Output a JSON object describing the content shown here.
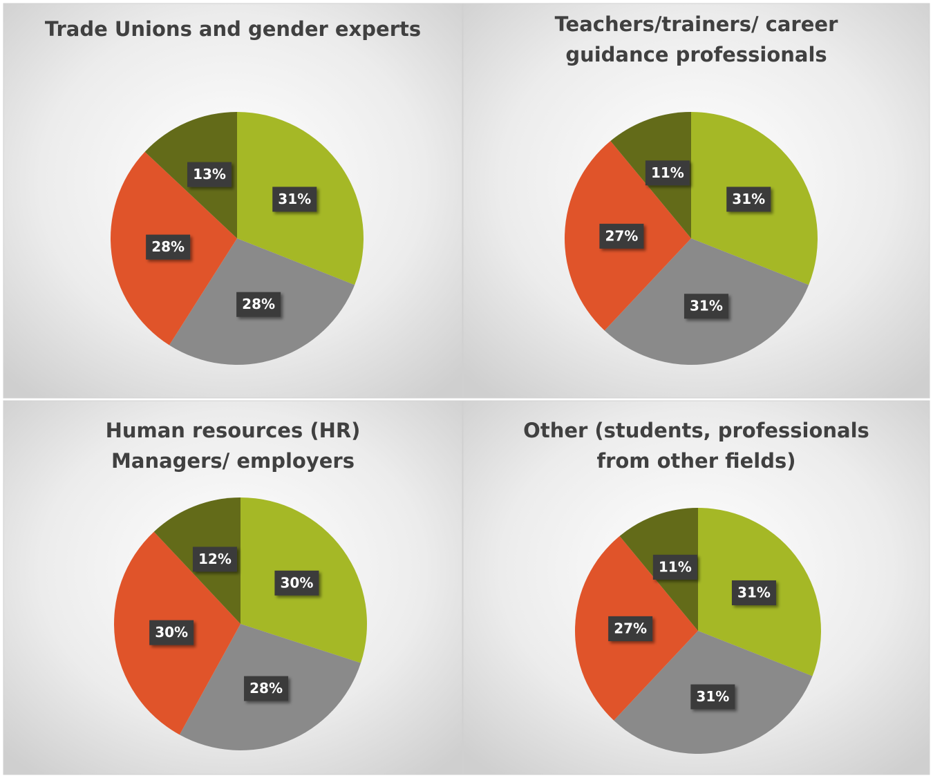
{
  "chart_data": [
    {
      "type": "pie",
      "title": [
        "Trade Unions and gender experts"
      ],
      "values": [
        31,
        28,
        28,
        13
      ],
      "value_labels": [
        "31%",
        "28%",
        "28%",
        "13%"
      ],
      "colors": [
        "#a5b826",
        "#8a8a8a",
        "#e0542a",
        "#636b19"
      ]
    },
    {
      "type": "pie",
      "title": [
        "Teachers/trainers/ career",
        "guidance professionals"
      ],
      "values": [
        31,
        31,
        27,
        11
      ],
      "value_labels": [
        "31%",
        "31%",
        "27%",
        "11%"
      ],
      "colors": [
        "#a5b826",
        "#8a8a8a",
        "#e0542a",
        "#636b19"
      ]
    },
    {
      "type": "pie",
      "title": [
        "Human resources (HR)",
        "Managers/ employers"
      ],
      "values": [
        30,
        28,
        30,
        12
      ],
      "value_labels": [
        "30%",
        "28%",
        "30%",
        "12%"
      ],
      "colors": [
        "#a5b826",
        "#8a8a8a",
        "#e0542a",
        "#636b19"
      ]
    },
    {
      "type": "pie",
      "title": [
        "Other (students, professionals",
        "from other fields)"
      ],
      "values": [
        31,
        31,
        27,
        11
      ],
      "value_labels": [
        "31%",
        "31%",
        "27%",
        "11%"
      ],
      "colors": [
        "#a5b826",
        "#8a8a8a",
        "#e0542a",
        "#636b19"
      ]
    }
  ]
}
